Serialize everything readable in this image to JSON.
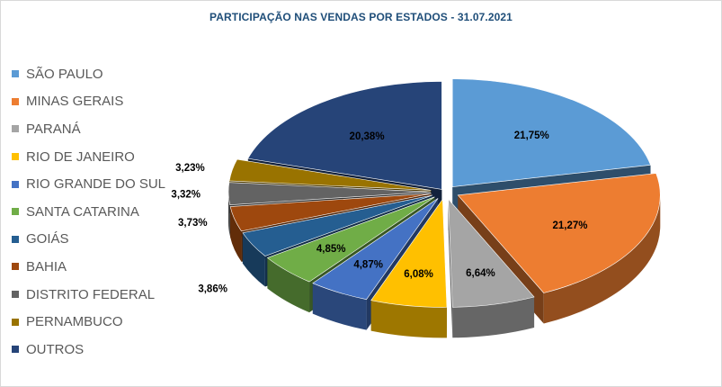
{
  "chart_data": {
    "type": "pie",
    "title": "PARTICIPAÇÃO NAS VENDAS POR ESTADOS - 31.07.2021",
    "legend_position": "left",
    "exploded": true,
    "three_d": true,
    "slices": [
      {
        "label": "SÃO PAULO",
        "value": 21.75,
        "value_label": "21,75%",
        "color": "#5b9bd5"
      },
      {
        "label": "MINAS GERAIS",
        "value": 21.27,
        "value_label": "21,27%",
        "color": "#ed7d31"
      },
      {
        "label": "PARANÁ",
        "value": 6.64,
        "value_label": "6,64%",
        "color": "#a5a5a5"
      },
      {
        "label": "RIO DE JANEIRO",
        "value": 6.08,
        "value_label": "6,08%",
        "color": "#ffc000"
      },
      {
        "label": "RIO GRANDE DO SUL",
        "value": 4.87,
        "value_label": "4,87%",
        "color": "#4472c4"
      },
      {
        "label": "SANTA CATARINA",
        "value": 4.85,
        "value_label": "4,85%",
        "color": "#70ad47"
      },
      {
        "label": "GOIÁS",
        "value": 3.86,
        "value_label": "3,86%",
        "color": "#255e91"
      },
      {
        "label": "BAHIA",
        "value": 3.73,
        "value_label": "3,73%",
        "color": "#9e480e"
      },
      {
        "label": "DISTRITO FEDERAL",
        "value": 3.32,
        "value_label": "3,32%",
        "color": "#636363"
      },
      {
        "label": "PERNAMBUCO",
        "value": 3.23,
        "value_label": "3,23%",
        "color": "#997300"
      },
      {
        "label": "OUTROS",
        "value": 20.38,
        "value_label": "20,38%",
        "color": "#264478"
      }
    ]
  }
}
